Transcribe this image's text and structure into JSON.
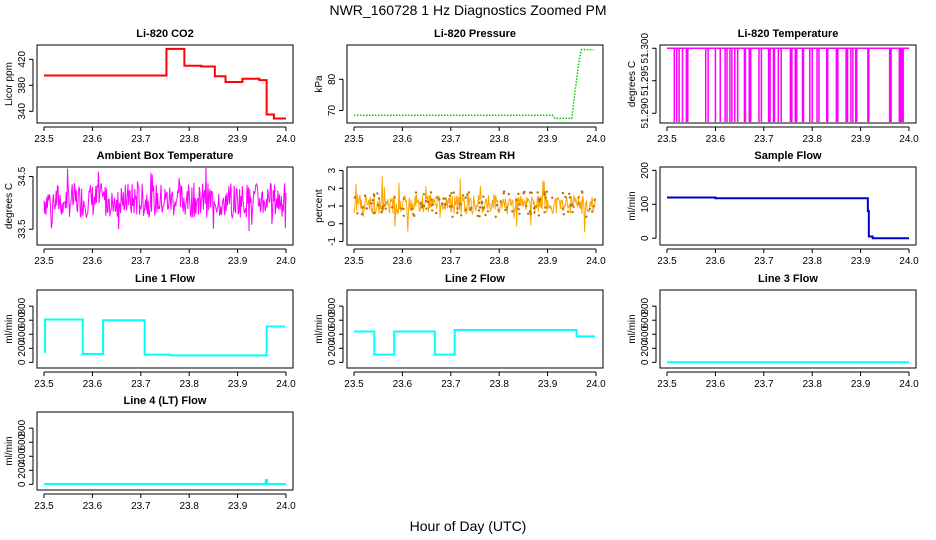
{
  "page": {
    "title": "NWR_160728  1 Hz Diagnostics Zoomed PM",
    "x_axis_label": "Hour of Day (UTC)"
  },
  "chart_data": [
    {
      "type": "line",
      "title": "Li-820 CO2",
      "ylabel": "Licor ppm",
      "color": "#ff0000",
      "xlim": [
        23.5,
        24.0
      ],
      "ylim": [
        322,
        442
      ],
      "x_ticks": [
        "23.5",
        "23.6",
        "23.7",
        "23.8",
        "23.9",
        "24.0"
      ],
      "y_ticks": [
        {
          "v": 340,
          "label": "340"
        },
        {
          "v": 380,
          "label": "380"
        },
        {
          "v": 420,
          "label": "420"
        }
      ],
      "mode": "step",
      "series": [
        {
          "segments": [
            [
              23.5,
              23.753,
              395
            ],
            [
              23.753,
              23.79,
              436
            ],
            [
              23.79,
              23.825,
              410
            ],
            [
              23.825,
              23.853,
              409
            ],
            [
              23.853,
              23.875,
              394
            ],
            [
              23.875,
              23.91,
              385
            ],
            [
              23.91,
              23.945,
              390
            ],
            [
              23.945,
              23.96,
              388
            ],
            [
              23.96,
              23.975,
              335
            ],
            [
              23.975,
              24.0,
              329
            ]
          ]
        }
      ]
    },
    {
      "type": "line",
      "title": "Li-820 Pressure",
      "ylabel": "kPa",
      "color": "#00cc00",
      "xlim": [
        23.5,
        24.0
      ],
      "ylim": [
        66,
        91
      ],
      "x_ticks": [
        "23.5",
        "23.6",
        "23.7",
        "23.8",
        "23.9",
        "24.0"
      ],
      "y_ticks": [
        {
          "v": 70,
          "label": "70"
        },
        {
          "v": 80,
          "label": "80"
        }
      ],
      "mode": "points",
      "series": [
        {
          "points": [
            [
              23.5,
              68.5
            ],
            [
              23.91,
              68.5
            ],
            [
              23.915,
              67.5
            ],
            [
              23.95,
              67.5
            ],
            [
              23.955,
              74
            ],
            [
              23.96,
              80
            ],
            [
              23.965,
              86
            ],
            [
              23.97,
              89.5
            ],
            [
              23.995,
              89.5
            ]
          ]
        }
      ]
    },
    {
      "type": "line",
      "title": "Li-820 Temperature",
      "ylabel": "degrees C",
      "color": "#ff00ff",
      "xlim": [
        23.5,
        24.0
      ],
      "ylim": [
        51.2885,
        51.3005
      ],
      "x_ticks": [
        "23.5",
        "23.6",
        "23.7",
        "23.8",
        "23.9",
        "24.0"
      ],
      "y_ticks": [
        {
          "v": 51.29,
          "label": "51.290"
        },
        {
          "v": 51.295,
          "label": "51.295"
        },
        {
          "v": 51.3,
          "label": "51.300"
        }
      ],
      "mode": "binary",
      "high": 51.3,
      "low": 51.2885,
      "low_intervals": [
        [
          23.515,
          23.52
        ],
        [
          23.525,
          23.532
        ],
        [
          23.54,
          23.543
        ],
        [
          23.58,
          23.585
        ],
        [
          23.6,
          23.61
        ],
        [
          23.62,
          23.624
        ],
        [
          23.63,
          23.634
        ],
        [
          23.64,
          23.646
        ],
        [
          23.66,
          23.662
        ],
        [
          23.67,
          23.673
        ],
        [
          23.69,
          23.695
        ],
        [
          23.71,
          23.713
        ],
        [
          23.72,
          23.722
        ],
        [
          23.73,
          23.736
        ],
        [
          23.755,
          23.758
        ],
        [
          23.765,
          23.768
        ],
        [
          23.78,
          23.782
        ],
        [
          23.795,
          23.8
        ],
        [
          23.81,
          23.814
        ],
        [
          23.83,
          23.832
        ],
        [
          23.85,
          23.853
        ],
        [
          23.87,
          23.873
        ],
        [
          23.88,
          23.884
        ],
        [
          23.89,
          23.892
        ],
        [
          23.915,
          23.917
        ],
        [
          23.96,
          23.963
        ],
        [
          23.98,
          23.982
        ],
        [
          23.985,
          23.988
        ]
      ]
    },
    {
      "type": "line",
      "title": "Ambient Box Temperature",
      "ylabel": "degrees C",
      "color": "#ff00ff",
      "xlim": [
        23.5,
        24.0
      ],
      "ylim": [
        33.2,
        34.68
      ],
      "x_ticks": [
        "23.5",
        "23.6",
        "23.7",
        "23.8",
        "23.9",
        "24.0"
      ],
      "y_ticks": [
        {
          "v": 33.5,
          "label": "33.5"
        },
        {
          "v": 34.5,
          "label": "34.5"
        }
      ],
      "mode": "noise",
      "base": 34.05,
      "amp": 0.33,
      "spike_amp": 0.7,
      "seed": 7
    },
    {
      "type": "scatter",
      "title": "Gas Stream RH",
      "ylabel": "percent",
      "color": "#ffa500",
      "xlim": [
        23.5,
        24.0
      ],
      "ylim": [
        -1.2,
        3.2
      ],
      "x_ticks": [
        "23.5",
        "23.6",
        "23.7",
        "23.8",
        "23.9",
        "24.0"
      ],
      "y_ticks": [
        {
          "v": -1,
          "label": "-1"
        },
        {
          "v": 0,
          "label": "0"
        },
        {
          "v": 1,
          "label": "1"
        },
        {
          "v": 2,
          "label": "2"
        },
        {
          "v": 3,
          "label": "3"
        }
      ],
      "mode": "noise",
      "base": 1.1,
      "amp": 0.55,
      "spike_amp": 1.7,
      "seed": 21
    },
    {
      "type": "line",
      "title": "Sample Flow",
      "ylabel": "ml/min",
      "color": "#0000cc",
      "xlim": [
        23.5,
        24.0
      ],
      "ylim": [
        -20,
        210
      ],
      "x_ticks": [
        "23.5",
        "23.6",
        "23.7",
        "23.8",
        "23.9",
        "24.0"
      ],
      "y_ticks": [
        {
          "v": 0,
          "label": "0"
        },
        {
          "v": 100,
          "label": "100"
        },
        {
          "v": 200,
          "label": "200"
        }
      ],
      "mode": "step",
      "series": [
        {
          "segments": [
            [
              23.5,
              23.6,
              120
            ],
            [
              23.6,
              23.915,
              118
            ],
            [
              23.915,
              23.917,
              80
            ],
            [
              23.917,
              23.925,
              5
            ],
            [
              23.925,
              24.0,
              0
            ]
          ]
        }
      ]
    },
    {
      "type": "line",
      "title": "Line 1 Flow",
      "ylabel": "ml/min",
      "color": "#00ffff",
      "xlim": [
        23.5,
        24.0
      ],
      "ylim": [
        -80,
        1030
      ],
      "x_ticks": [
        "23.5",
        "23.6",
        "23.7",
        "23.8",
        "23.9",
        "24.0"
      ],
      "y_ticks": [
        {
          "v": 0,
          "label": "0"
        },
        {
          "v": 200,
          "label": "200"
        },
        {
          "v": 400,
          "label": "400"
        },
        {
          "v": 600,
          "label": "600"
        },
        {
          "v": 800,
          "label": "800"
        }
      ],
      "mode": "step",
      "series": [
        {
          "segments": [
            [
              23.5,
              23.502,
              150
            ],
            [
              23.502,
              23.58,
              610
            ],
            [
              23.58,
              23.622,
              120
            ],
            [
              23.622,
              23.708,
              600
            ],
            [
              23.708,
              23.76,
              110
            ],
            [
              23.76,
              23.96,
              100
            ],
            [
              23.96,
              23.998,
              510
            ]
          ]
        }
      ]
    },
    {
      "type": "line",
      "title": "Line 2 Flow",
      "ylabel": "ml/min",
      "color": "#00ffff",
      "xlim": [
        23.5,
        24.0
      ],
      "ylim": [
        -80,
        1030
      ],
      "x_ticks": [
        "23.5",
        "23.6",
        "23.7",
        "23.8",
        "23.9",
        "24.0"
      ],
      "y_ticks": [
        {
          "v": 0,
          "label": "0"
        },
        {
          "v": 200,
          "label": "200"
        },
        {
          "v": 400,
          "label": "400"
        },
        {
          "v": 600,
          "label": "600"
        },
        {
          "v": 800,
          "label": "800"
        }
      ],
      "mode": "step",
      "series": [
        {
          "segments": [
            [
              23.5,
              23.542,
              440
            ],
            [
              23.542,
              23.583,
              110
            ],
            [
              23.583,
              23.667,
              440
            ],
            [
              23.667,
              23.708,
              110
            ],
            [
              23.708,
              23.96,
              460
            ],
            [
              23.96,
              23.998,
              370
            ]
          ]
        }
      ]
    },
    {
      "type": "line",
      "title": "Line 3 Flow",
      "ylabel": "ml/min",
      "color": "#00ffff",
      "xlim": [
        23.5,
        24.0
      ],
      "ylim": [
        -80,
        1030
      ],
      "x_ticks": [
        "23.5",
        "23.6",
        "23.7",
        "23.8",
        "23.9",
        "24.0"
      ],
      "y_ticks": [
        {
          "v": 0,
          "label": "0"
        },
        {
          "v": 200,
          "label": "200"
        },
        {
          "v": 400,
          "label": "400"
        },
        {
          "v": 600,
          "label": "600"
        },
        {
          "v": 800,
          "label": "800"
        }
      ],
      "mode": "step",
      "series": [
        {
          "segments": [
            [
              23.5,
              24.0,
              2
            ]
          ]
        }
      ]
    },
    {
      "type": "line",
      "title": "Line 4 (LT) Flow",
      "ylabel": "ml/min",
      "color": "#00ffff",
      "xlim": [
        23.5,
        24.0
      ],
      "ylim": [
        -80,
        1030
      ],
      "x_ticks": [
        "23.5",
        "23.6",
        "23.7",
        "23.8",
        "23.9",
        "24.0"
      ],
      "y_ticks": [
        {
          "v": 0,
          "label": "0"
        },
        {
          "v": 200,
          "label": "200"
        },
        {
          "v": 400,
          "label": "400"
        },
        {
          "v": 600,
          "label": "600"
        },
        {
          "v": 800,
          "label": "800"
        }
      ],
      "mode": "step",
      "series": [
        {
          "segments": [
            [
              23.5,
              23.958,
              5
            ],
            [
              23.958,
              23.961,
              60
            ],
            [
              23.961,
              24.0,
              5
            ]
          ]
        }
      ]
    }
  ]
}
